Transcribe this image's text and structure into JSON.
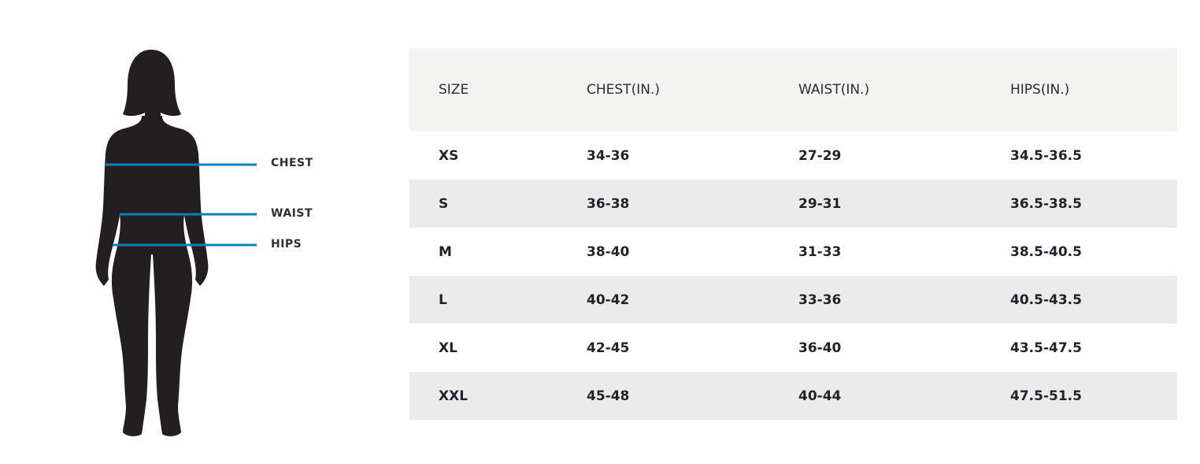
{
  "figure": {
    "measure_labels": [
      "CHEST",
      "WAIST",
      "HIPS"
    ],
    "line_color": "#0a7fc4",
    "silhouette_color": "#231f20"
  },
  "chart_data": {
    "type": "table",
    "columns": [
      "SIZE",
      "CHEST(IN.)",
      "WAIST(IN.)",
      "HIPS(IN.)"
    ],
    "rows": [
      [
        "XS",
        "34-36",
        "27-29",
        "34.5-36.5"
      ],
      [
        "S",
        "36-38",
        "29-31",
        "36.5-38.5"
      ],
      [
        "M",
        "38-40",
        "31-33",
        "38.5-40.5"
      ],
      [
        "L",
        "40-42",
        "33-36",
        "40.5-43.5"
      ],
      [
        "XL",
        "42-45",
        "36-40",
        "43.5-47.5"
      ],
      [
        "XXL",
        "45-48",
        "40-44",
        "47.5-51.5"
      ]
    ]
  }
}
